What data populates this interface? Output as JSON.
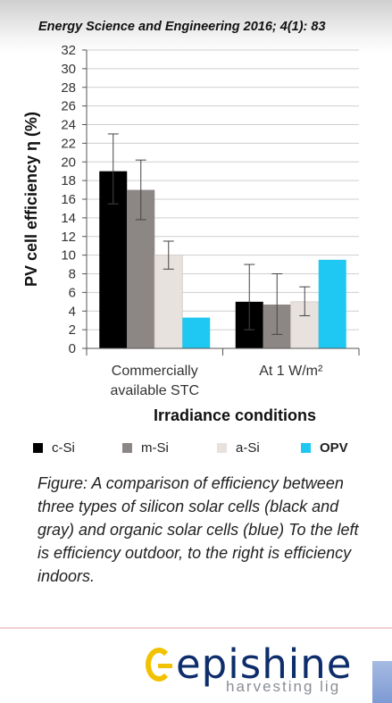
{
  "header": {
    "citation": "Energy Science and Engineering 2016; 4(1): 83"
  },
  "chart_data": {
    "type": "bar",
    "ylabel": "PV cell efficiency η (%)",
    "xlabel": "Irradiance conditions",
    "ylim": [
      0,
      32
    ],
    "yticks": [
      0,
      2,
      4,
      6,
      8,
      10,
      12,
      14,
      16,
      18,
      20,
      22,
      24,
      26,
      28,
      30,
      32
    ],
    "grid": true,
    "categories": [
      {
        "line1": "Commercially",
        "line2": "available STC"
      },
      {
        "line1": "At 1 W/m²",
        "line2": ""
      }
    ],
    "series": [
      {
        "name": "c-Si",
        "color": "#000000",
        "values": [
          19,
          5
        ],
        "err_low": [
          15.5,
          2
        ],
        "err_high": [
          23,
          9
        ]
      },
      {
        "name": "m-Si",
        "color": "#8c8785",
        "values": [
          17,
          4.7
        ],
        "err_low": [
          13.8,
          1.5
        ],
        "err_high": [
          20.2,
          8
        ]
      },
      {
        "name": "a-Si",
        "color": "#e8e2df",
        "values": [
          10,
          5
        ],
        "err_low": [
          8.5,
          3.5
        ],
        "err_high": [
          11.5,
          6.6
        ]
      },
      {
        "name": "OPV",
        "color": "#1ec8f2",
        "values": [
          3.3,
          9.5
        ],
        "err_low": [
          null,
          null
        ],
        "err_high": [
          null,
          null
        ]
      }
    ]
  },
  "caption": "Figure: A comparison of efficiency between three types of silicon solar cells (black and gray) and organic solar cells (blue) To the left is efficiency outdoor, to the right is efficiency indoors.",
  "logo": {
    "word": "epishine",
    "tagline": "harvesting lig"
  }
}
